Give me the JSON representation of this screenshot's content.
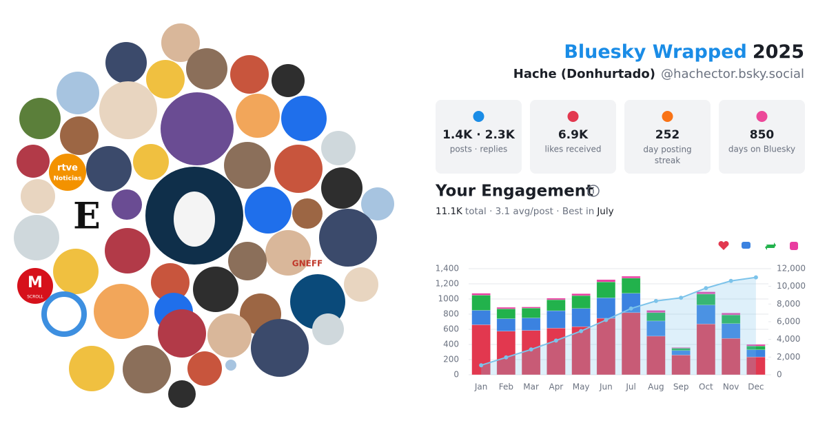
{
  "header": {
    "title": "Bluesky Wrapped",
    "year": "2025",
    "name": "Hache (Donhurtado)",
    "handle": "@hachector.bsky.social"
  },
  "stats": [
    {
      "value": "1.4K · 2.3K",
      "label": "posts · replies"
    },
    {
      "value": "6.9K",
      "label": "likes received"
    },
    {
      "value": "252",
      "label": "day posting streak"
    },
    {
      "value": "850",
      "label": "days on Bluesky"
    }
  ],
  "engagement": {
    "title": "Your Engagement",
    "total": "11.1K",
    "summary": "total · 3.1 avg/post · Best in",
    "best": "July"
  },
  "avatar_texts": [
    "rtve",
    "Noticias",
    "E",
    "M",
    "SCROLL",
    "GNEFF"
  ],
  "chart_data": {
    "type": "bar",
    "categories": [
      "Jan",
      "Feb",
      "Mar",
      "Apr",
      "May",
      "Jun",
      "Jul",
      "Aug",
      "Sep",
      "Oct",
      "Nov",
      "Dec"
    ],
    "series": [
      {
        "color": "#e2384f",
        "values": [
          660,
          575,
          585,
          615,
          635,
          745,
          820,
          510,
          260,
          670,
          480,
          235
        ]
      },
      {
        "color": "#3b82e0",
        "values": [
          190,
          165,
          165,
          230,
          240,
          270,
          255,
          200,
          60,
          250,
          195,
          95
        ]
      },
      {
        "color": "#22b24c",
        "values": [
          200,
          130,
          130,
          145,
          170,
          210,
          200,
          110,
          30,
          145,
          115,
          50
        ]
      },
      {
        "color": "#e93ca0",
        "values": [
          25,
          20,
          15,
          20,
          25,
          30,
          25,
          30,
          10,
          30,
          25,
          20
        ]
      },
      {
        "color": "#7cc3ea",
        "axis": "y2",
        "line": true,
        "values": [
          1075,
          1965,
          2860,
          3870,
          4940,
          6195,
          7495,
          8345,
          8705,
          9800,
          10615,
          11015
        ]
      }
    ],
    "ylim": [
      0,
      1400
    ],
    "yticks": [
      0,
      200,
      400,
      600,
      800,
      1000,
      {
        "value": 1200,
        "label": "1,200"
      },
      {
        "value": 1400,
        "label": "1,400"
      }
    ],
    "y2lim": [
      0,
      12000
    ],
    "y2ticks": [
      0,
      {
        "value": 2000,
        "label": "2,000"
      },
      {
        "value": 4000,
        "label": "4,000"
      },
      {
        "value": 6000,
        "label": "6,000"
      },
      {
        "value": 8000,
        "label": "8,000"
      },
      {
        "value": 10000,
        "label": "10,000"
      },
      {
        "value": 12000,
        "label": "12,000"
      }
    ],
    "grid": true
  }
}
